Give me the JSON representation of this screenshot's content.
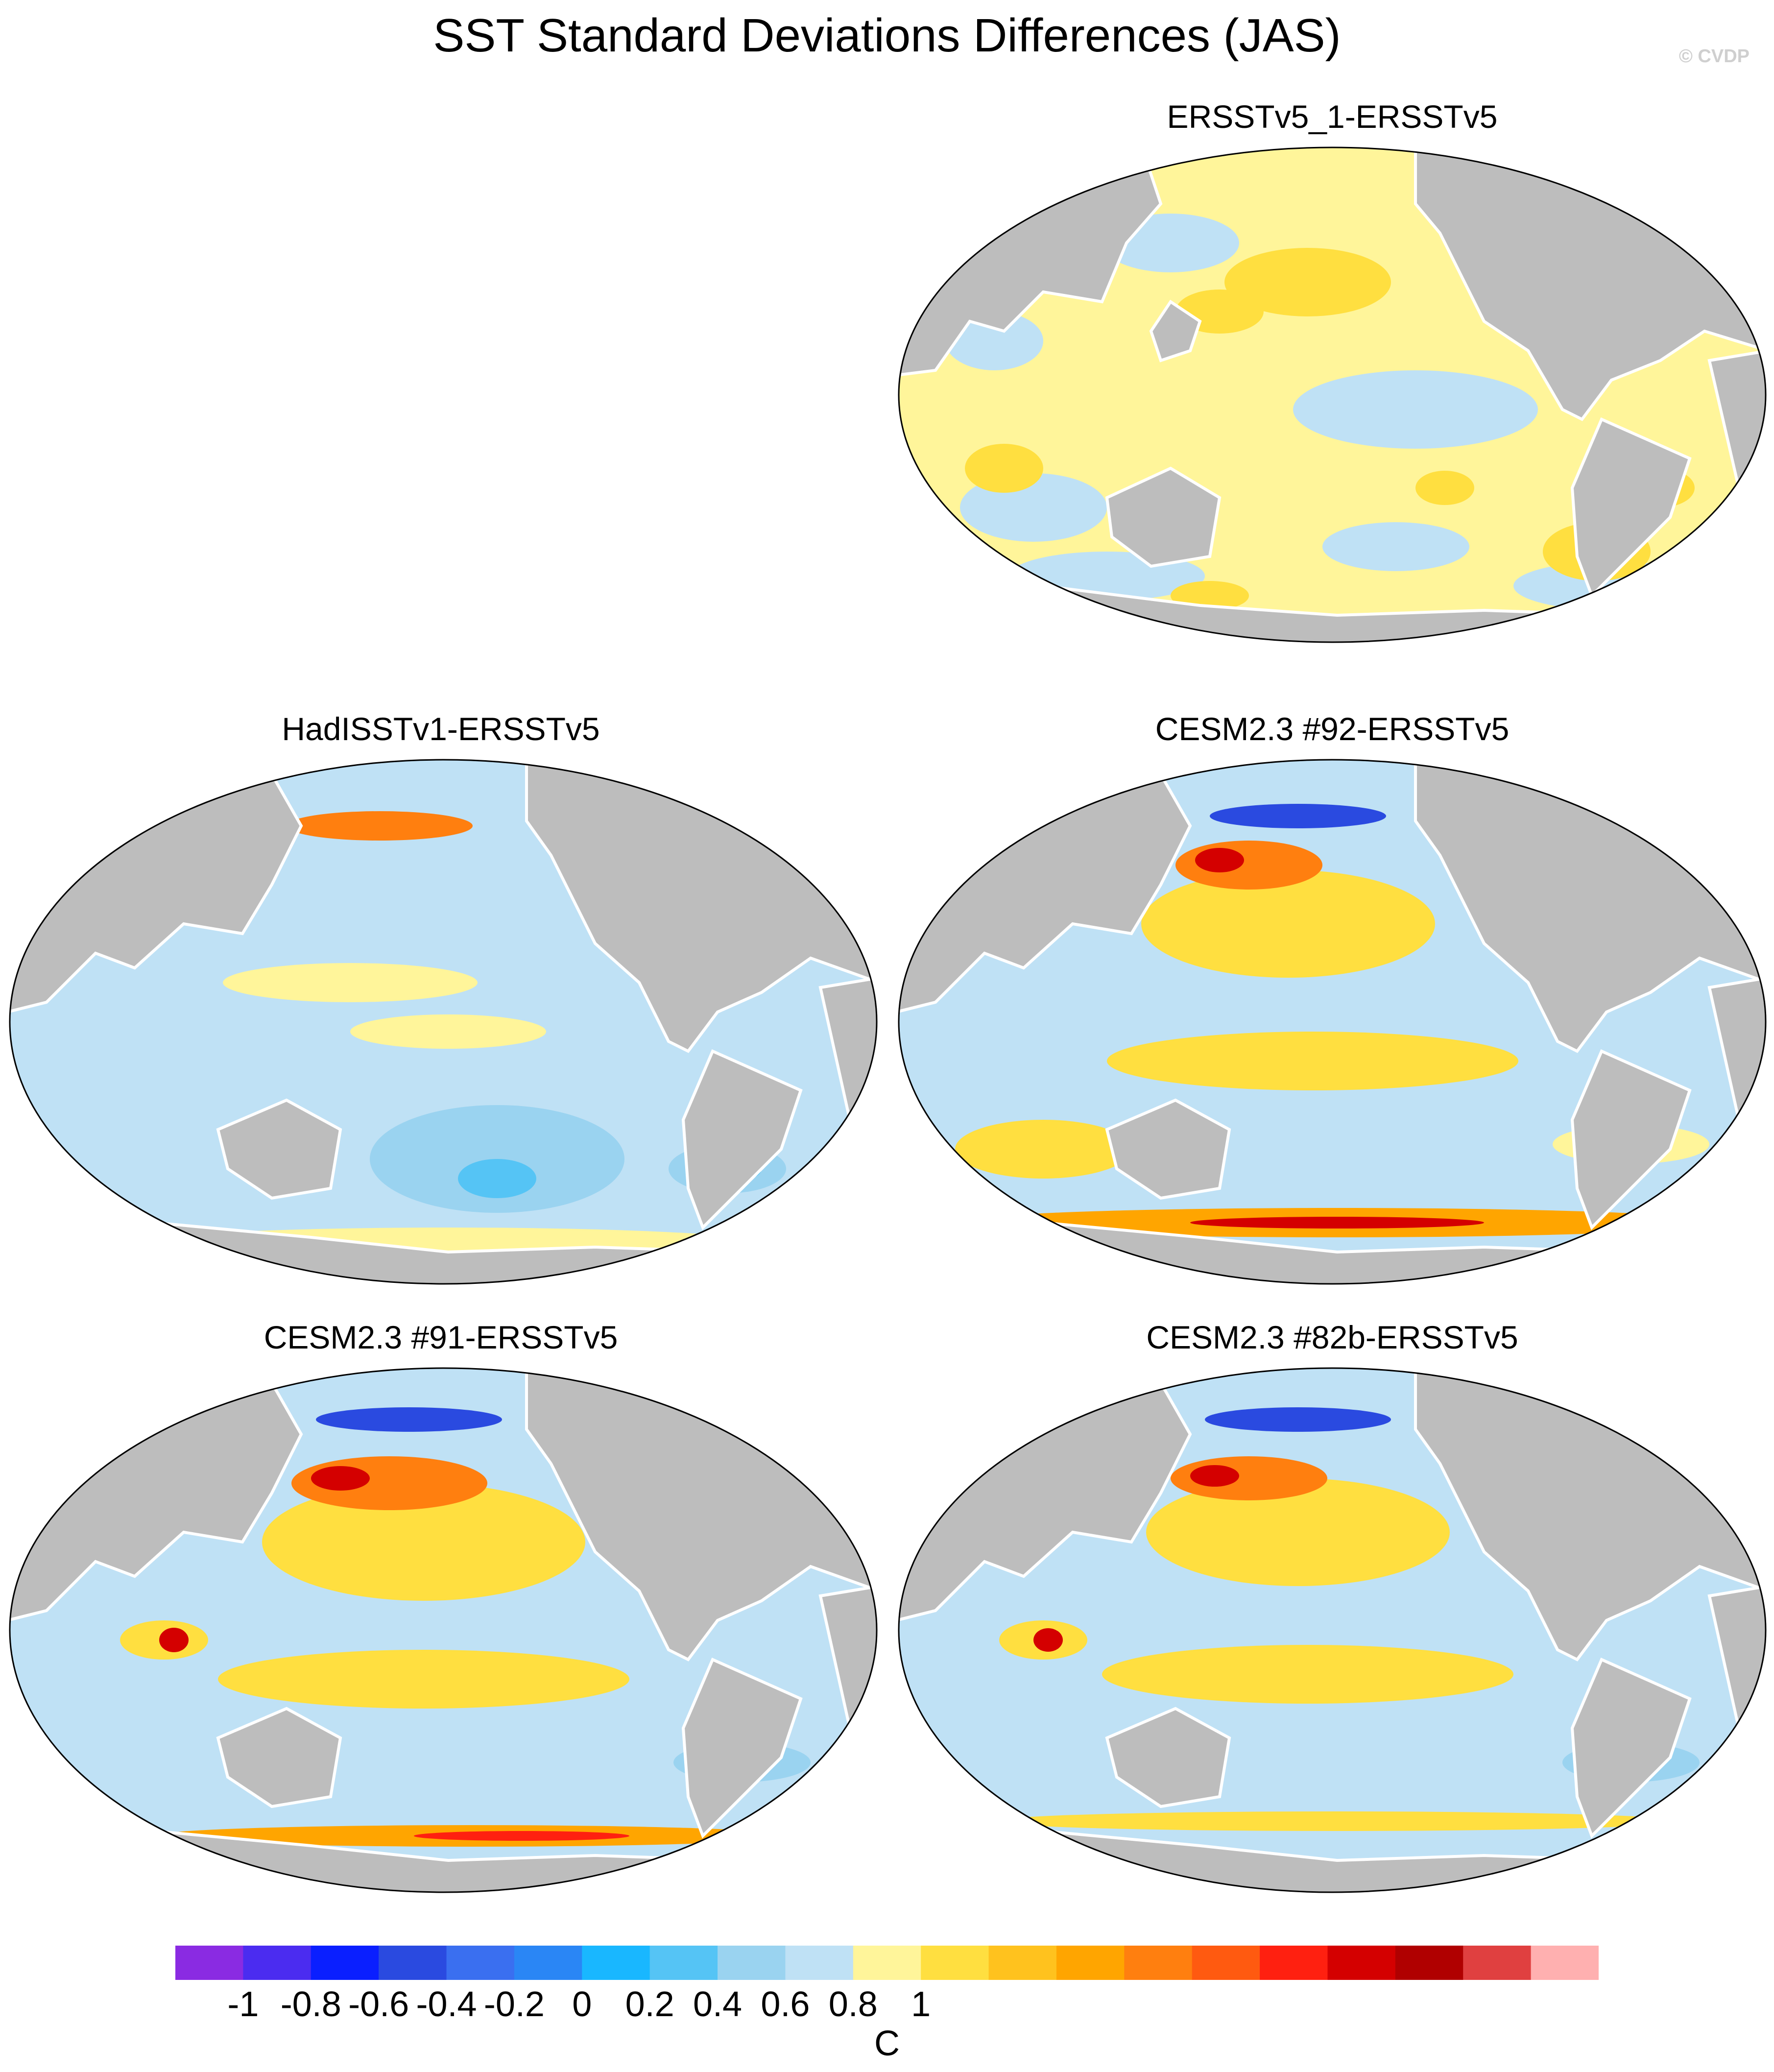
{
  "title": "SST Standard Deviations Differences (JAS)",
  "watermark": "© CVDP",
  "panels": [
    {
      "title": "ERSSTv5_1-ERSSTv5"
    },
    {
      "title": "HadISSTv1-ERSSTv5"
    },
    {
      "title": "CESM2.3 #92-ERSSTv5"
    },
    {
      "title": "CESM2.3 #91-ERSSTv5"
    },
    {
      "title": "CESM2.3 #82b-ERSSTv5"
    }
  ],
  "colorbar": {
    "units": "C",
    "tick_labels": [
      "-1",
      "-0.8",
      "-0.6",
      "-0.4",
      "-0.2",
      "0",
      "0.2",
      "0.4",
      "0.6",
      "0.8",
      "1"
    ],
    "colors": [
      "#8a2be2",
      "#4b2cf0",
      "#0a1fff",
      "#2a4ae0",
      "#3a6ff0",
      "#2a86f5",
      "#19b7ff",
      "#55c4f5",
      "#9ad3f0",
      "#bfe1f5",
      "#fff59a",
      "#ffdf40",
      "#ffc21e",
      "#ffa500",
      "#ff7f0f",
      "#ff5a10",
      "#ff2010",
      "#d40000",
      "#b00000",
      "#e04040",
      "#ffb0b0"
    ]
  },
  "legend_colors": {
    "land": "#bdbdbd",
    "coast": "#ffffff",
    "ocean_positive_small": "#fff59a",
    "ocean_negative_small": "#bfe1f5"
  }
}
